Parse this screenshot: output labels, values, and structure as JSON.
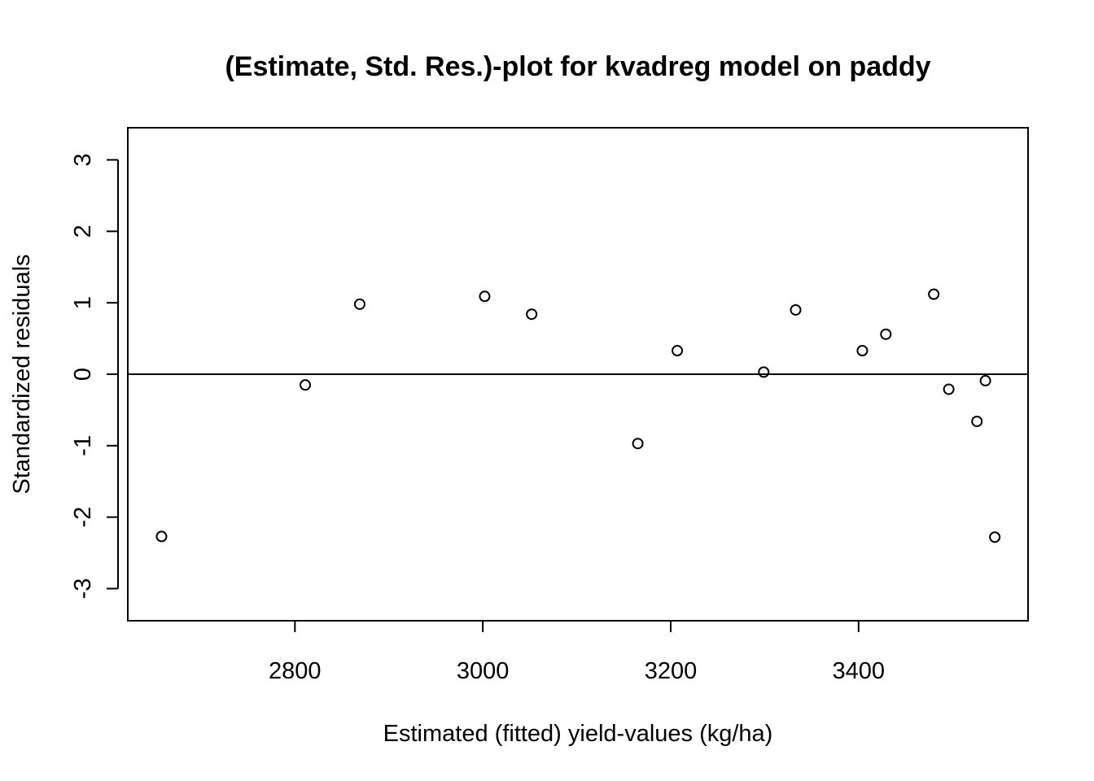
{
  "chart_data": {
    "type": "scatter",
    "title": "(Estimate, Std. Res.)-plot for kvadreg model on paddy",
    "xlabel": "Estimated (fitted) yield-values (kg/ha)",
    "ylabel": "Standardized residuals",
    "xlim": [
      2622.1,
      3580.4
    ],
    "ylim": [
      -3.45,
      3.45
    ],
    "x_ticks": [
      2800,
      3000,
      3200,
      3400
    ],
    "y_ticks": [
      -3,
      -2,
      -1,
      0,
      1,
      2,
      3
    ],
    "reference_line_y": 0,
    "grid": false,
    "marker": "open-circle",
    "points": [
      {
        "x": 2658,
        "y": -2.27
      },
      {
        "x": 2811,
        "y": -0.15
      },
      {
        "x": 2869,
        "y": 0.98
      },
      {
        "x": 3002,
        "y": 1.09
      },
      {
        "x": 3052,
        "y": 0.84
      },
      {
        "x": 3165,
        "y": -0.97
      },
      {
        "x": 3207,
        "y": 0.33
      },
      {
        "x": 3299,
        "y": 0.03
      },
      {
        "x": 3333,
        "y": 0.9
      },
      {
        "x": 3404,
        "y": 0.33
      },
      {
        "x": 3429,
        "y": 0.56
      },
      {
        "x": 3480,
        "y": 1.12
      },
      {
        "x": 3496,
        "y": -0.21
      },
      {
        "x": 3526,
        "y": -0.66
      },
      {
        "x": 3535,
        "y": -0.09
      },
      {
        "x": 3545,
        "y": -2.28
      }
    ]
  }
}
